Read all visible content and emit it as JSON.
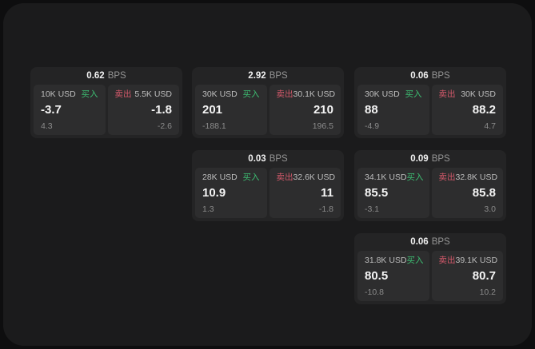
{
  "colors": {
    "page_bg": "#0e0e0f",
    "panel_bg": "#1b1b1c",
    "card_bg": "#242425",
    "tile_bg": "#2d2d2e",
    "buy_green": "#3dbf73",
    "sell_red": "#d4596a",
    "text_primary": "#f5f5f5",
    "text_secondary": "#bdbdbd",
    "text_muted": "#8b8b8b"
  },
  "labels": {
    "bps_unit": "BPS",
    "buy": "买入",
    "sell": "卖出"
  },
  "cards": [
    {
      "bps": "0.62",
      "buy": {
        "amount": "10K USD",
        "price": "-3.7",
        "delta": "4.3"
      },
      "sell": {
        "amount": "5.5K USD",
        "price": "-1.8",
        "delta": "-2.6"
      }
    },
    {
      "bps": "2.92",
      "buy": {
        "amount": "30K USD",
        "price": "201",
        "delta": "-188.1"
      },
      "sell": {
        "amount": "30.1K USD",
        "price": "210",
        "delta": "196.5"
      }
    },
    {
      "bps": "0.06",
      "buy": {
        "amount": "30K USD",
        "price": "88",
        "delta": "-4.9"
      },
      "sell": {
        "amount": "30K USD",
        "price": "88.2",
        "delta": "4.7"
      }
    },
    {
      "bps": "0.03",
      "buy": {
        "amount": "28K USD",
        "price": "10.9",
        "delta": "1.3"
      },
      "sell": {
        "amount": "32.6K USD",
        "price": "11",
        "delta": "-1.8"
      }
    },
    {
      "bps": "0.09",
      "buy": {
        "amount": "34.1K USD",
        "price": "85.5",
        "delta": "-3.1"
      },
      "sell": {
        "amount": "32.8K USD",
        "price": "85.8",
        "delta": "3.0"
      }
    },
    {
      "bps": "0.06",
      "buy": {
        "amount": "31.8K USD",
        "price": "80.5",
        "delta": "-10.8"
      },
      "sell": {
        "amount": "39.1K USD",
        "price": "80.7",
        "delta": "10.2"
      }
    }
  ]
}
